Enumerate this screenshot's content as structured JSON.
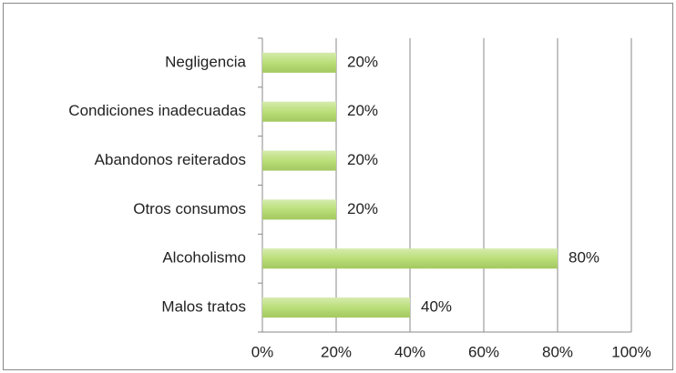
{
  "chart_data": {
    "type": "bar",
    "orientation": "horizontal",
    "categories": [
      "Negligencia",
      "Condiciones inadecuadas",
      "Abandonos reiterados",
      "Otros consumos",
      "Alcoholismo",
      "Malos tratos"
    ],
    "values": [
      20,
      20,
      20,
      20,
      80,
      40
    ],
    "value_labels": [
      "20%",
      "20%",
      "20%",
      "20%",
      "80%",
      "40%"
    ],
    "color": "#b3db6a",
    "xlim": [
      0,
      100
    ],
    "xticks": [
      {
        "value": 0,
        "label": "0%"
      },
      {
        "value": 20,
        "label": "20%"
      },
      {
        "value": 40,
        "label": "40%"
      },
      {
        "value": 60,
        "label": "60%"
      },
      {
        "value": 80,
        "label": "80%"
      },
      {
        "value": 100,
        "label": "100%"
      }
    ],
    "grid": true
  }
}
